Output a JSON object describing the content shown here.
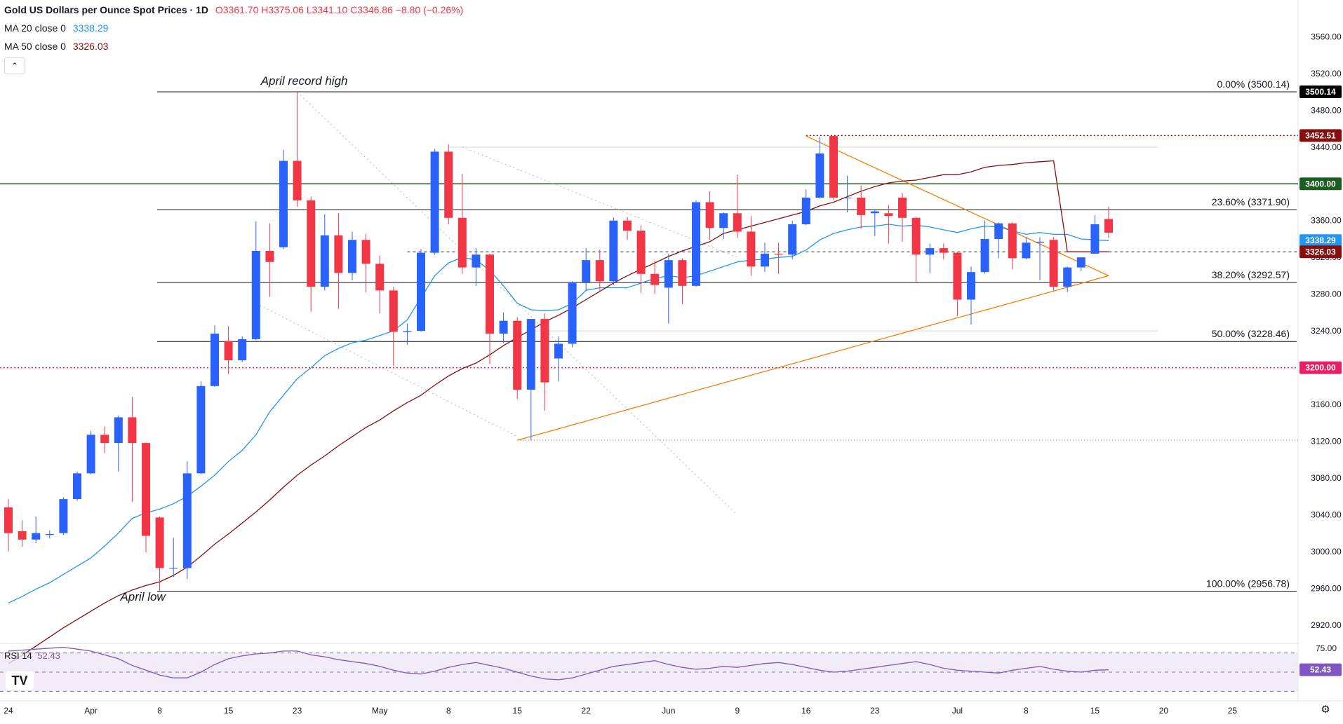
{
  "header": {
    "title": "Gold US Dollars per Ounce Spot Prices · 1D",
    "ohlc": "O3361.70 H3375.06 L3341.10 C3346.86 −8.80 (−0.26%)",
    "ma20_label": "MA 20 close 0",
    "ma20_value": "3338.29",
    "ma50_label": "MA 50 close 0",
    "ma50_value": "3326.03"
  },
  "rsi": {
    "label": "RSI 14",
    "value": "52.43"
  },
  "icons": {
    "collapse": "chevron-up-icon",
    "logo": "tradingview-logo",
    "settings": "gear-icon"
  },
  "colors": {
    "up": "#2962ff",
    "down": "#f23645",
    "ma20": "#2196f3",
    "ma50": "#880e0e",
    "triangle": "#f57c00",
    "rsi": "#7e57c2"
  },
  "chart_data": {
    "type": "candlestick",
    "title": "Gold US Dollars per Ounce Spot Prices · 1D",
    "ylim": [
      2900,
      3600
    ],
    "y_ticks": [
      2920,
      2960,
      3000,
      3040,
      3080,
      3120,
      3160,
      3200,
      3240,
      3280,
      3320,
      3360,
      3400,
      3440,
      3480,
      3520,
      3560,
      3600
    ],
    "x_tick_labels": [
      {
        "label": "24",
        "i": 0
      },
      {
        "label": "Apr",
        "i": 6
      },
      {
        "label": "8",
        "i": 11
      },
      {
        "label": "15",
        "i": 16
      },
      {
        "label": "23",
        "i": 21
      },
      {
        "label": "May",
        "i": 27
      },
      {
        "label": "8",
        "i": 32
      },
      {
        "label": "15",
        "i": 37
      },
      {
        "label": "22",
        "i": 42
      },
      {
        "label": "Jun",
        "i": 48
      },
      {
        "label": "9",
        "i": 53
      },
      {
        "label": "16",
        "i": 58
      },
      {
        "label": "23",
        "i": 63
      },
      {
        "label": "Jul",
        "i": 69
      },
      {
        "label": "8",
        "i": 74
      },
      {
        "label": "15",
        "i": 79
      },
      {
        "label": "20",
        "i": 84
      },
      {
        "label": "25",
        "i": 89
      }
    ],
    "candles": [
      {
        "o": 3048,
        "h": 3057,
        "l": 3000,
        "c": 3020
      },
      {
        "o": 3022,
        "h": 3034,
        "l": 3005,
        "c": 3013
      },
      {
        "o": 3013,
        "h": 3038,
        "l": 3009,
        "c": 3020
      },
      {
        "o": 3018,
        "h": 3023,
        "l": 3014,
        "c": 3019
      },
      {
        "o": 3020,
        "h": 3059,
        "l": 3018,
        "c": 3057
      },
      {
        "o": 3057,
        "h": 3087,
        "l": 3055,
        "c": 3085
      },
      {
        "o": 3085,
        "h": 3131,
        "l": 3084,
        "c": 3127
      },
      {
        "o": 3127,
        "h": 3136,
        "l": 3107,
        "c": 3118
      },
      {
        "o": 3118,
        "h": 3148,
        "l": 3087,
        "c": 3146
      },
      {
        "o": 3146,
        "h": 3168,
        "l": 3054,
        "c": 3118
      },
      {
        "o": 3118,
        "h": 3119,
        "l": 2999,
        "c": 3017
      },
      {
        "o": 3037,
        "h": 3038,
        "l": 2957,
        "c": 2982
      },
      {
        "o": 2982,
        "h": 3015,
        "l": 2972,
        "c": 2982
      },
      {
        "o": 2982,
        "h": 3098,
        "l": 2970,
        "c": 3085
      },
      {
        "o": 3085,
        "h": 3185,
        "l": 3084,
        "c": 3180
      },
      {
        "o": 3180,
        "h": 3246,
        "l": 3179,
        "c": 3237
      },
      {
        "o": 3229,
        "h": 3245,
        "l": 3193,
        "c": 3208
      },
      {
        "o": 3208,
        "h": 3234,
        "l": 3206,
        "c": 3231
      },
      {
        "o": 3231,
        "h": 3359,
        "l": 3230,
        "c": 3327
      },
      {
        "o": 3327,
        "h": 3357,
        "l": 3277,
        "c": 3315
      },
      {
        "o": 3331,
        "h": 3437,
        "l": 3329,
        "c": 3425
      },
      {
        "o": 3425,
        "h": 3500,
        "l": 3375,
        "c": 3382
      },
      {
        "o": 3382,
        "h": 3386,
        "l": 3261,
        "c": 3288
      },
      {
        "o": 3288,
        "h": 3367,
        "l": 3284,
        "c": 3344
      },
      {
        "o": 3344,
        "h": 3368,
        "l": 3264,
        "c": 3303
      },
      {
        "o": 3303,
        "h": 3348,
        "l": 3295,
        "c": 3339
      },
      {
        "o": 3339,
        "h": 3346,
        "l": 3282,
        "c": 3313
      },
      {
        "o": 3313,
        "h": 3322,
        "l": 3259,
        "c": 3284
      },
      {
        "o": 3284,
        "h": 3288,
        "l": 3202,
        "c": 3239
      },
      {
        "o": 3239,
        "h": 3248,
        "l": 3225,
        "c": 3240
      },
      {
        "o": 3240,
        "h": 3329,
        "l": 3239,
        "c": 3325
      },
      {
        "o": 3325,
        "h": 3438,
        "l": 3323,
        "c": 3435
      },
      {
        "o": 3435,
        "h": 3443,
        "l": 3356,
        "c": 3363
      },
      {
        "o": 3363,
        "h": 3411,
        "l": 3302,
        "c": 3309
      },
      {
        "o": 3309,
        "h": 3330,
        "l": 3289,
        "c": 3323
      },
      {
        "o": 3323,
        "h": 3324,
        "l": 3204,
        "c": 3237
      },
      {
        "o": 3237,
        "h": 3260,
        "l": 3227,
        "c": 3251
      },
      {
        "o": 3251,
        "h": 3255,
        "l": 3166,
        "c": 3176
      },
      {
        "o": 3176,
        "h": 3253,
        "l": 3121,
        "c": 3253
      },
      {
        "o": 3253,
        "h": 3259,
        "l": 3153,
        "c": 3184
      },
      {
        "o": 3210,
        "h": 3234,
        "l": 3185,
        "c": 3226
      },
      {
        "o": 3226,
        "h": 3294,
        "l": 3222,
        "c": 3293
      },
      {
        "o": 3293,
        "h": 3330,
        "l": 3284,
        "c": 3317
      },
      {
        "o": 3317,
        "h": 3328,
        "l": 3284,
        "c": 3294
      },
      {
        "o": 3294,
        "h": 3363,
        "l": 3290,
        "c": 3360
      },
      {
        "o": 3360,
        "h": 3364,
        "l": 3339,
        "c": 3349
      },
      {
        "o": 3349,
        "h": 3355,
        "l": 3281,
        "c": 3302
      },
      {
        "o": 3302,
        "h": 3316,
        "l": 3280,
        "c": 3290
      },
      {
        "o": 3287,
        "h": 3324,
        "l": 3248,
        "c": 3317
      },
      {
        "o": 3317,
        "h": 3319,
        "l": 3269,
        "c": 3289
      },
      {
        "o": 3289,
        "h": 3382,
        "l": 3288,
        "c": 3380
      },
      {
        "o": 3380,
        "h": 3392,
        "l": 3339,
        "c": 3352
      },
      {
        "o": 3352,
        "h": 3369,
        "l": 3340,
        "c": 3368
      },
      {
        "o": 3368,
        "h": 3410,
        "l": 3341,
        "c": 3348
      },
      {
        "o": 3348,
        "h": 3365,
        "l": 3300,
        "c": 3310
      },
      {
        "o": 3310,
        "h": 3336,
        "l": 3304,
        "c": 3324
      },
      {
        "o": 3324,
        "h": 3336,
        "l": 3302,
        "c": 3323
      },
      {
        "o": 3323,
        "h": 3360,
        "l": 3318,
        "c": 3356
      },
      {
        "o": 3356,
        "h": 3394,
        "l": 3355,
        "c": 3385
      },
      {
        "o": 3385,
        "h": 3451,
        "l": 3384,
        "c": 3433
      },
      {
        "o": 3452,
        "h": 3452,
        "l": 3382,
        "c": 3385
      },
      {
        "o": 3385,
        "h": 3409,
        "l": 3369,
        "c": 3385
      },
      {
        "o": 3385,
        "h": 3398,
        "l": 3351,
        "c": 3366
      },
      {
        "o": 3368,
        "h": 3372,
        "l": 3343,
        "c": 3370
      },
      {
        "o": 3368,
        "h": 3377,
        "l": 3335,
        "c": 3365
      },
      {
        "o": 3385,
        "h": 3390,
        "l": 3337,
        "c": 3363
      },
      {
        "o": 3363,
        "h": 3364,
        "l": 3293,
        "c": 3323
      },
      {
        "o": 3323,
        "h": 3335,
        "l": 3303,
        "c": 3330
      },
      {
        "o": 3330,
        "h": 3335,
        "l": 3318,
        "c": 3325
      },
      {
        "o": 3325,
        "h": 3326,
        "l": 3256,
        "c": 3274
      },
      {
        "o": 3274,
        "h": 3310,
        "l": 3247,
        "c": 3304
      },
      {
        "o": 3304,
        "h": 3360,
        "l": 3302,
        "c": 3340
      },
      {
        "o": 3340,
        "h": 3358,
        "l": 3319,
        "c": 3357
      },
      {
        "o": 3357,
        "h": 3358,
        "l": 3307,
        "c": 3319
      },
      {
        "o": 3319,
        "h": 3342,
        "l": 3318,
        "c": 3336
      },
      {
        "o": 3336,
        "h": 3342,
        "l": 3295,
        "c": 3337
      },
      {
        "o": 3339,
        "h": 3342,
        "l": 3284,
        "c": 3288
      },
      {
        "o": 3288,
        "h": 3310,
        "l": 3282,
        "c": 3309
      },
      {
        "o": 3309,
        "h": 3320,
        "l": 3305,
        "c": 3320
      },
      {
        "o": 3324,
        "h": 3366,
        "l": 3324,
        "c": 3356
      },
      {
        "o": 3361.7,
        "h": 3375.06,
        "l": 3341.1,
        "c": 3346.86
      }
    ],
    "ma20": [
      2944,
      2951,
      2959,
      2966,
      2975,
      2984,
      2993,
      3006,
      3020,
      3036,
      3042,
      3046,
      3052,
      3060,
      3071,
      3083,
      3098,
      3110,
      3127,
      3152,
      3170,
      3188,
      3200,
      3213,
      3221,
      3227,
      3230,
      3235,
      3240,
      3252,
      3276,
      3300,
      3314,
      3320,
      3317,
      3306,
      3289,
      3270,
      3263,
      3262,
      3263,
      3270,
      3284,
      3287,
      3287,
      3287,
      3292,
      3297,
      3300,
      3298,
      3300,
      3305,
      3310,
      3315,
      3317,
      3318,
      3320,
      3321,
      3328,
      3339,
      3346,
      3350,
      3353,
      3354,
      3356,
      3354,
      3355,
      3353,
      3350,
      3347,
      3351,
      3354,
      3353,
      3349,
      3345,
      3347,
      3345,
      3345,
      3340,
      3339,
      3338.29
    ],
    "ma50": [
      2878,
      2887,
      2897,
      2907,
      2917,
      2926,
      2935,
      2944,
      2952,
      2958,
      2963,
      2967,
      2974,
      2983,
      2995,
      3008,
      3019,
      3031,
      3043,
      3056,
      3070,
      3083,
      3094,
      3104,
      3115,
      3125,
      3135,
      3143,
      3153,
      3162,
      3170,
      3181,
      3191,
      3199,
      3205,
      3214,
      3224,
      3233,
      3241,
      3250,
      3257,
      3265,
      3274,
      3283,
      3292,
      3300,
      3307,
      3314,
      3321,
      3327,
      3332,
      3337,
      3346,
      3350,
      3354,
      3358,
      3362,
      3366,
      3370,
      3376,
      3380,
      3386,
      3392,
      3397,
      3401,
      3403,
      3404,
      3407,
      3410,
      3410,
      3413,
      3418,
      3420,
      3421,
      3423,
      3424,
      3425,
      3326,
      3326,
      3326,
      3326.03
    ],
    "rsi": {
      "ylim": [
        20,
        80
      ],
      "ticks": [
        75
      ],
      "upper": 70,
      "lower": 30,
      "values": [
        72,
        73,
        74,
        75,
        76,
        74,
        72,
        68,
        64,
        57,
        52,
        47,
        44,
        44,
        50,
        58,
        64,
        67,
        69,
        70,
        72,
        72,
        68,
        66,
        63,
        61,
        59,
        56,
        52,
        49,
        48,
        51,
        55,
        58,
        60,
        57,
        54,
        50,
        46,
        43,
        42,
        44,
        48,
        52,
        56,
        58,
        60,
        62,
        58,
        55,
        53,
        54,
        56,
        55,
        57,
        59,
        60,
        58,
        55,
        52,
        50,
        51,
        53,
        55,
        57,
        59,
        61,
        58,
        54,
        52,
        51,
        50,
        49,
        52,
        54,
        56,
        53,
        51,
        50,
        52,
        52.43
      ]
    },
    "fib_levels": [
      {
        "label": "0.00% (3500.14)",
        "value": 3500.14
      },
      {
        "label": "23.60% (3371.90)",
        "value": 3371.9
      },
      {
        "label": "38.20% (3292.57)",
        "value": 3292.57
      },
      {
        "label": "50.00% (3228.46)",
        "value": 3228.46
      },
      {
        "label": "100.00% (2956.78)",
        "value": 2956.78
      }
    ],
    "price_tags": [
      {
        "label": "3500.14",
        "value": 3500.14,
        "bg": "#000000",
        "fg": "#ffffff"
      },
      {
        "label": "3452.51",
        "value": 3452.51,
        "bg": "#880e0e",
        "fg": "#ffffff"
      },
      {
        "label": "3400.00",
        "value": 3400,
        "bg": "#1b5e20",
        "fg": "#ffffff"
      },
      {
        "label": "3338.29",
        "value": 3338.29,
        "bg": "#2196f3",
        "fg": "#ffffff"
      },
      {
        "label": "3326.03",
        "value": 3326.03,
        "bg": "#880e0e",
        "fg": "#ffffff"
      },
      {
        "label": "3200.00",
        "value": 3200,
        "bg": "#e91e63",
        "fg": "#ffffff"
      },
      {
        "label": "52.43",
        "value": 52.43,
        "bg": "#7e57c2",
        "fg": "#ffffff",
        "pane": "rsi"
      }
    ],
    "annotations": [
      {
        "text": "April record high",
        "i": 21,
        "value": 3500
      },
      {
        "text": "April low",
        "i": 11,
        "value": 2957
      }
    ]
  }
}
